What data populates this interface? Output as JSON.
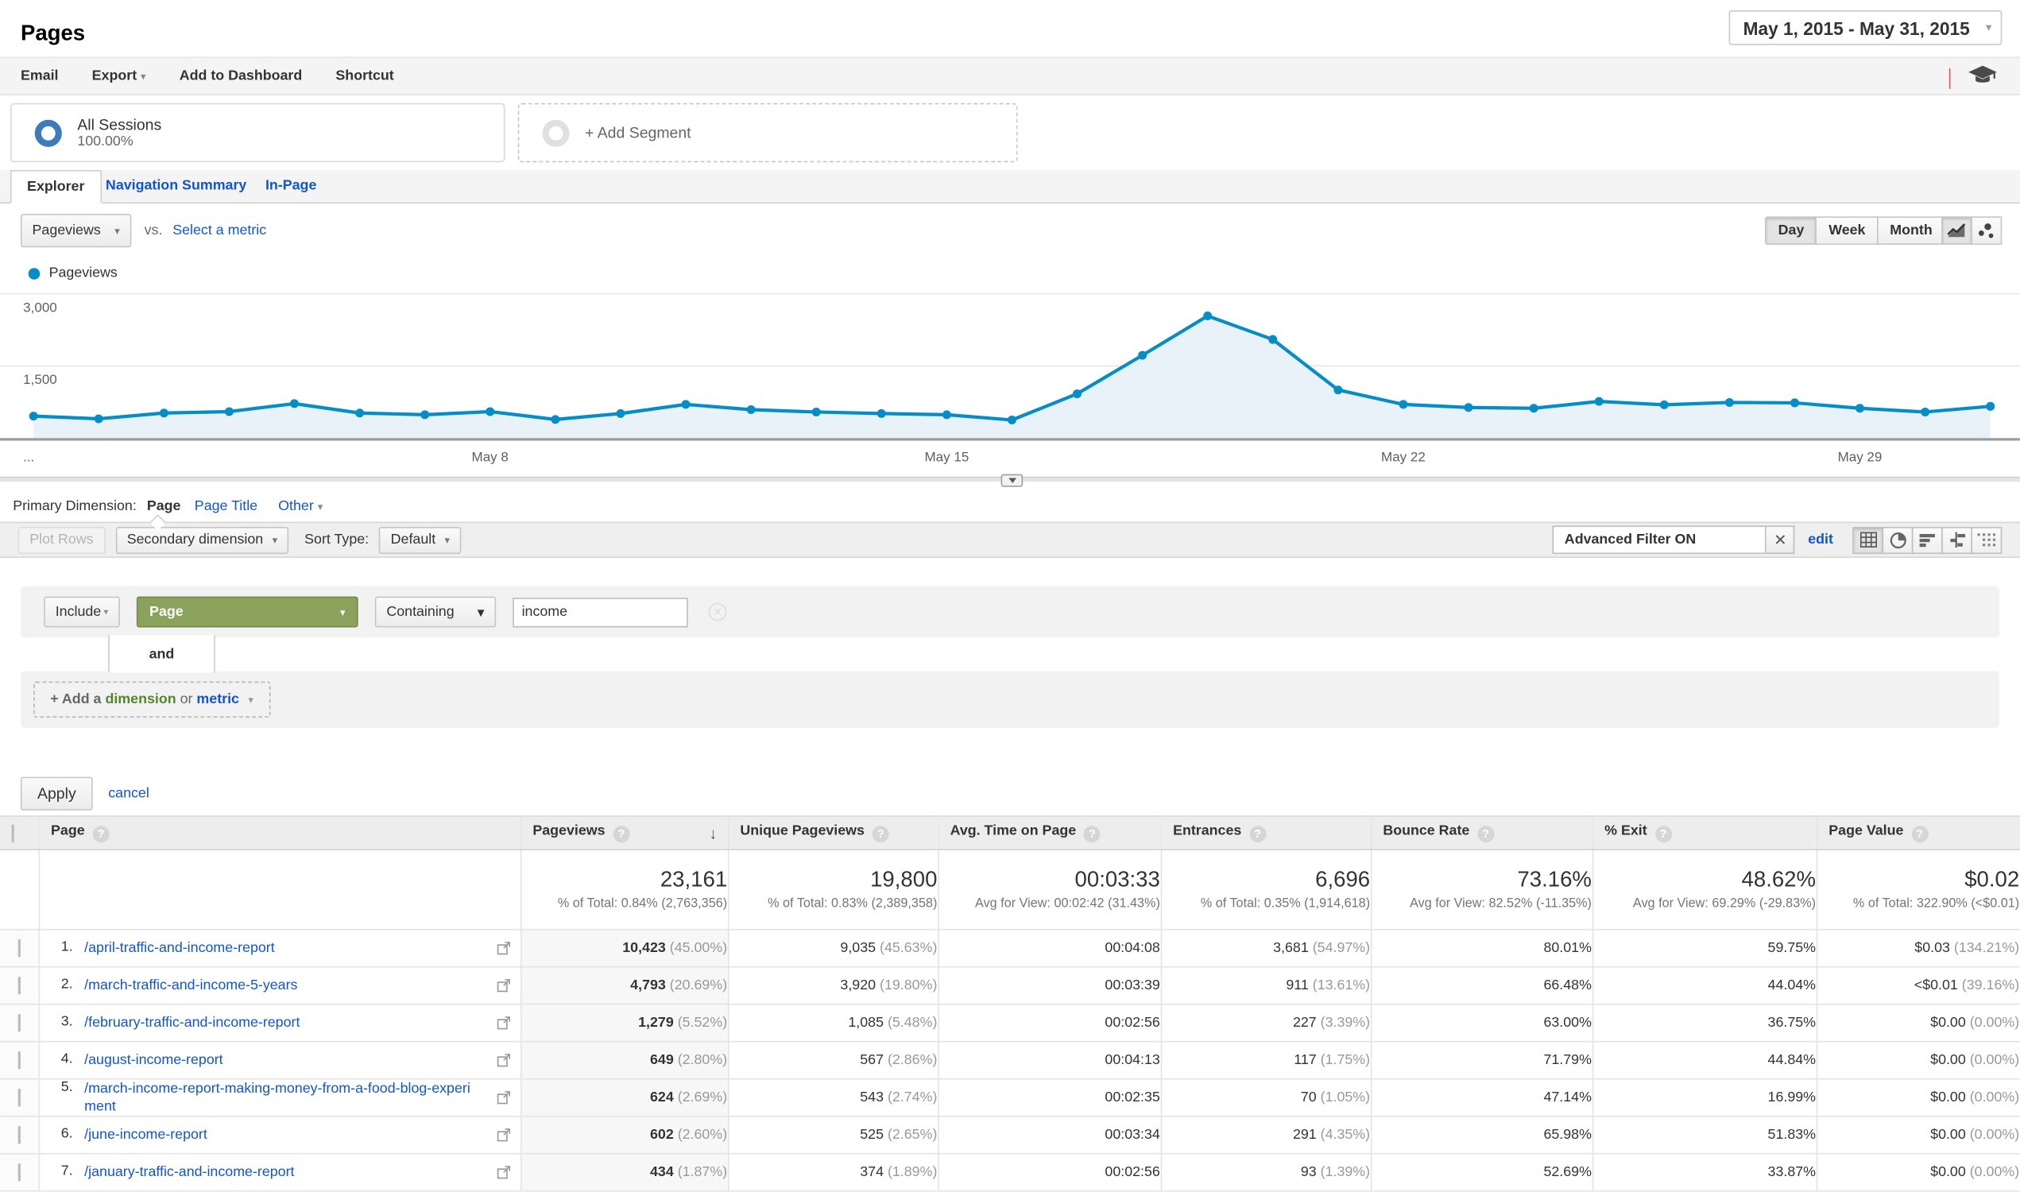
{
  "header": {
    "title": "Pages",
    "date_range": "May 1, 2015 - May 31, 2015"
  },
  "toolbar": {
    "email": "Email",
    "export": "Export",
    "add_to_dashboard": "Add to Dashboard",
    "shortcut": "Shortcut"
  },
  "segments": {
    "all_sessions": {
      "label": "All Sessions",
      "percent": "100.00%"
    },
    "add_segment": "+ Add Segment"
  },
  "tabs": {
    "explorer": "Explorer",
    "navigation_summary": "Navigation Summary",
    "in_page": "In-Page"
  },
  "metric_bar": {
    "metric": "Pageviews",
    "vs": "vs.",
    "select_metric": "Select a metric",
    "day": "Day",
    "week": "Week",
    "month": "Month",
    "active_granularity": "Day"
  },
  "legend": {
    "label": "Pageviews",
    "color": "#058dc7"
  },
  "chart_data": {
    "type": "area",
    "title": "Pageviews by day",
    "series": [
      {
        "name": "Pageviews",
        "values": [
          455,
          400,
          520,
          550,
          715,
          520,
          485,
          550,
          385,
          510,
          700,
          590,
          540,
          510,
          485,
          375,
          920,
          1720,
          2540,
          2050,
          1000,
          700,
          635,
          620,
          760,
          690,
          740,
          730,
          620,
          540,
          660
        ]
      }
    ],
    "categories": [
      "May 1",
      "May 2",
      "May 3",
      "May 4",
      "May 5",
      "May 6",
      "May 7",
      "May 8",
      "May 9",
      "May 10",
      "May 11",
      "May 12",
      "May 13",
      "May 14",
      "May 15",
      "May 16",
      "May 17",
      "May 18",
      "May 19",
      "May 20",
      "May 21",
      "May 22",
      "May 23",
      "May 24",
      "May 25",
      "May 26",
      "May 27",
      "May 28",
      "May 29",
      "May 30",
      "May 31"
    ],
    "x_ticks": [
      {
        "index": 7,
        "label": "May 8"
      },
      {
        "index": 14,
        "label": "May 15"
      },
      {
        "index": 21,
        "label": "May 22"
      },
      {
        "index": 28,
        "label": "May 29"
      }
    ],
    "left_overflow_label": "...",
    "ylim": [
      0,
      3000
    ],
    "y_ticks": [
      {
        "value": 1500,
        "label": "1,500"
      },
      {
        "value": 3000,
        "label": "3,000"
      }
    ],
    "grid": true,
    "line_color": "#058dc7",
    "fill_color": "#e9f2f9"
  },
  "primary_dimension": {
    "label": "Primary Dimension:",
    "page": "Page",
    "page_title": "Page Title",
    "other": "Other"
  },
  "controls": {
    "plot_rows": "Plot Rows",
    "secondary_dimension": "Secondary dimension",
    "sort_type_label": "Sort Type:",
    "sort_type_value": "Default",
    "advanced_filter": "Advanced Filter ON",
    "edit": "edit"
  },
  "filter": {
    "include": "Include",
    "field": "Page",
    "match": "Containing",
    "value": "income",
    "and": "and",
    "add_prefix": "+ Add a",
    "add_dimension": "dimension",
    "add_or": "or",
    "add_metric": "metric"
  },
  "apply": {
    "apply": "Apply",
    "cancel": "cancel"
  },
  "table": {
    "columns": [
      {
        "label": "Page"
      },
      {
        "label": "Pageviews"
      },
      {
        "label": "Unique Pageviews"
      },
      {
        "label": "Avg. Time on Page"
      },
      {
        "label": "Entrances"
      },
      {
        "label": "Bounce Rate"
      },
      {
        "label": "% Exit"
      },
      {
        "label": "Page Value"
      }
    ],
    "summary": {
      "pageviews": {
        "main": "23,161",
        "sub": "% of Total: 0.84% (2,763,356)"
      },
      "unique_pageviews": {
        "main": "19,800",
        "sub": "% of Total: 0.83% (2,389,358)"
      },
      "avg_time": {
        "main": "00:03:33",
        "sub": "Avg for View: 00:02:42 (31.43%)"
      },
      "entrances": {
        "main": "6,696",
        "sub": "% of Total: 0.35% (1,914,618)"
      },
      "bounce_rate": {
        "main": "73.16%",
        "sub": "Avg for View: 82.52% (-11.35%)"
      },
      "pct_exit": {
        "main": "48.62%",
        "sub": "Avg for View: 69.29% (-29.83%)"
      },
      "page_value": {
        "main": "$0.02",
        "sub": "% of Total: 322.90% (<$0.01)"
      }
    },
    "rows": [
      {
        "n": "1.",
        "page": "/april-traffic-and-income-report",
        "pageviews": "10,423",
        "pageviews_pct": "(45.00%)",
        "unique": "9,035",
        "unique_pct": "(45.63%)",
        "time": "00:04:08",
        "entrances": "3,681",
        "entrances_pct": "(54.97%)",
        "bounce": "80.01%",
        "exit": "59.75%",
        "value": "$0.03",
        "value_pct": "(134.21%)"
      },
      {
        "n": "2.",
        "page": "/march-traffic-and-income-5-years",
        "pageviews": "4,793",
        "pageviews_pct": "(20.69%)",
        "unique": "3,920",
        "unique_pct": "(19.80%)",
        "time": "00:03:39",
        "entrances": "911",
        "entrances_pct": "(13.61%)",
        "bounce": "66.48%",
        "exit": "44.04%",
        "value": "<$0.01",
        "value_pct": "(39.16%)"
      },
      {
        "n": "3.",
        "page": "/february-traffic-and-income-report",
        "pageviews": "1,279",
        "pageviews_pct": "(5.52%)",
        "unique": "1,085",
        "unique_pct": "(5.48%)",
        "time": "00:02:56",
        "entrances": "227",
        "entrances_pct": "(3.39%)",
        "bounce": "63.00%",
        "exit": "36.75%",
        "value": "$0.00",
        "value_pct": "(0.00%)"
      },
      {
        "n": "4.",
        "page": "/august-income-report",
        "pageviews": "649",
        "pageviews_pct": "(2.80%)",
        "unique": "567",
        "unique_pct": "(2.86%)",
        "time": "00:04:13",
        "entrances": "117",
        "entrances_pct": "(1.75%)",
        "bounce": "71.79%",
        "exit": "44.84%",
        "value": "$0.00",
        "value_pct": "(0.00%)"
      },
      {
        "n": "5.",
        "page": "/march-income-report-making-money-from-a-food-blog-experiment",
        "pageviews": "624",
        "pageviews_pct": "(2.69%)",
        "unique": "543",
        "unique_pct": "(2.74%)",
        "time": "00:02:35",
        "entrances": "70",
        "entrances_pct": "(1.05%)",
        "bounce": "47.14%",
        "exit": "16.99%",
        "value": "$0.00",
        "value_pct": "(0.00%)"
      },
      {
        "n": "6.",
        "page": "/june-income-report",
        "pageviews": "602",
        "pageviews_pct": "(2.60%)",
        "unique": "525",
        "unique_pct": "(2.65%)",
        "time": "00:03:34",
        "entrances": "291",
        "entrances_pct": "(4.35%)",
        "bounce": "65.98%",
        "exit": "51.83%",
        "value": "$0.00",
        "value_pct": "(0.00%)"
      },
      {
        "n": "7.",
        "page": "/january-traffic-and-income-report",
        "pageviews": "434",
        "pageviews_pct": "(1.87%)",
        "unique": "374",
        "unique_pct": "(1.89%)",
        "time": "00:02:56",
        "entrances": "93",
        "entrances_pct": "(1.39%)",
        "bounce": "52.69%",
        "exit": "33.87%",
        "value": "$0.00",
        "value_pct": "(0.00%)"
      }
    ]
  }
}
